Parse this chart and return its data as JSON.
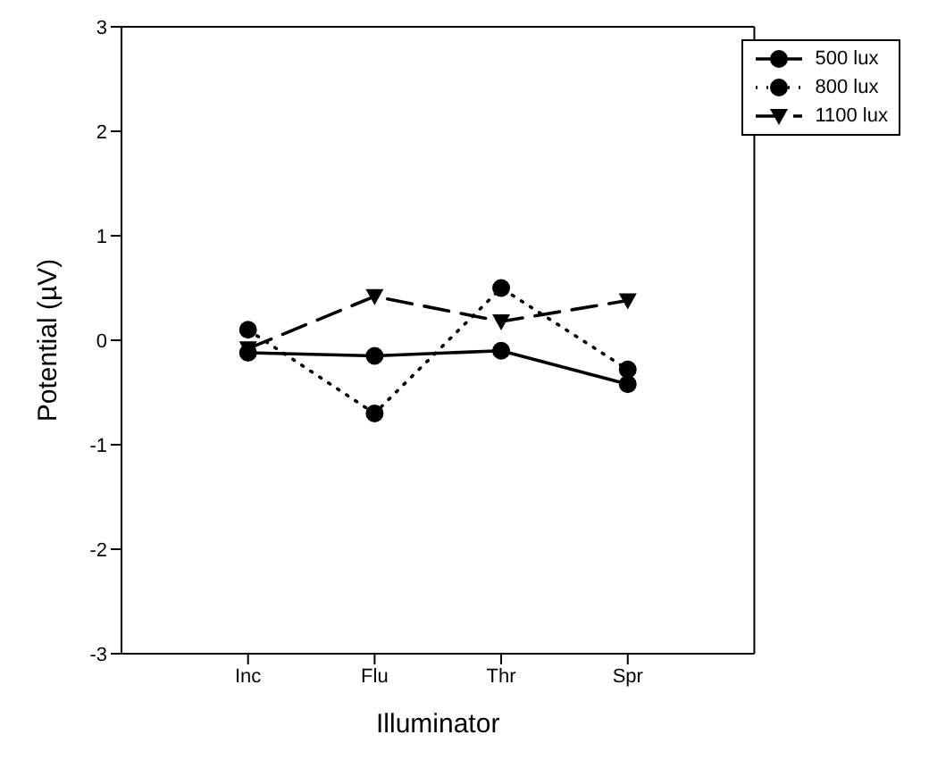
{
  "chart_data": {
    "type": "line",
    "xlabel": "Illuminator",
    "ylabel": "Potential (µV)",
    "categories": [
      "Inc",
      "Flu",
      "Thr",
      "Spr"
    ],
    "ylim": [
      -3,
      3
    ],
    "yticks": [
      -3,
      -2,
      -1,
      0,
      1,
      2,
      3
    ],
    "grid": false,
    "legend": "top right",
    "series": [
      {
        "name": "500 lux",
        "color": "#000000",
        "marker": "circle",
        "line_style": "solid",
        "values": [
          -0.12,
          -0.15,
          -0.1,
          -0.42
        ]
      },
      {
        "name": "800 lux",
        "color": "#000000",
        "marker": "circle",
        "line_style": "dotted",
        "values": [
          0.1,
          -0.7,
          0.5,
          -0.28
        ]
      },
      {
        "name": "1100 lux",
        "color": "#000000",
        "marker": "triangle",
        "line_style": "dashed",
        "values": [
          -0.08,
          0.42,
          0.18,
          0.38
        ]
      }
    ]
  }
}
